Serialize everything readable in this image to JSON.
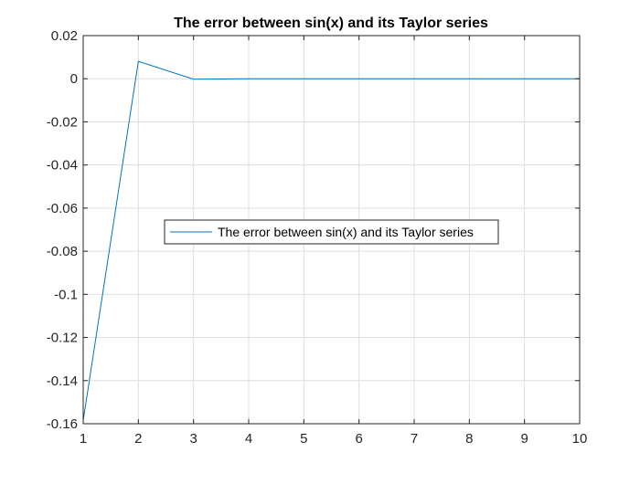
{
  "chart_data": {
    "type": "line",
    "title": "The error between sin(x) and its Taylor series",
    "xlabel": "",
    "ylabel": "",
    "xlim": [
      1,
      10
    ],
    "ylim": [
      -0.16,
      0.02
    ],
    "grid": true,
    "legend_position": "center",
    "x_ticks": [
      1,
      2,
      3,
      4,
      5,
      6,
      7,
      8,
      9,
      10
    ],
    "x_tick_labels": [
      "1",
      "2",
      "3",
      "4",
      "5",
      "6",
      "7",
      "8",
      "9",
      "10"
    ],
    "y_ticks": [
      -0.16,
      -0.14,
      -0.12,
      -0.1,
      -0.08,
      -0.06,
      -0.04,
      -0.02,
      0,
      0.02
    ],
    "y_tick_labels": [
      "-0.16",
      "-0.14",
      "-0.12",
      "-0.1",
      "-0.08",
      "-0.06",
      "-0.04",
      "-0.02",
      "0",
      "0.02"
    ],
    "series": [
      {
        "name": "The error between sin(x) and its Taylor series",
        "color": "#0072BD",
        "x": [
          1,
          2,
          3,
          4,
          5,
          6,
          7,
          8,
          9,
          10
        ],
        "y": [
          -0.1585,
          0.0081,
          -0.0002,
          0.0,
          0.0,
          0.0,
          0.0,
          0.0,
          0.0,
          0.0
        ]
      }
    ]
  }
}
